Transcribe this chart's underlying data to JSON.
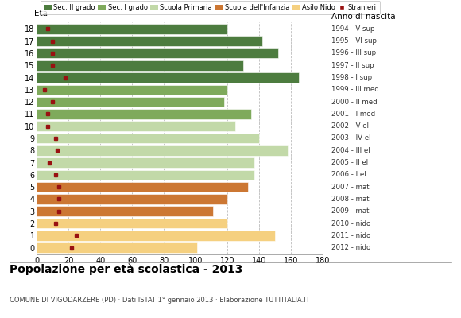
{
  "title": "Popolazione per età scolastica - 2013",
  "subtitle": "COMUNE DI VIGODARZERE (PD) · Dati ISTAT 1° gennaio 2013 · Elaborazione TUTTITALIA.IT",
  "label_eta": "Età",
  "label_anno": "Anno di nascita",
  "ages": [
    18,
    17,
    16,
    15,
    14,
    13,
    12,
    11,
    10,
    9,
    8,
    7,
    6,
    5,
    4,
    3,
    2,
    1,
    0
  ],
  "years": [
    "1994 - V sup",
    "1995 - VI sup",
    "1996 - III sup",
    "1997 - II sup",
    "1998 - I sup",
    "1999 - III med",
    "2000 - II med",
    "2001 - I med",
    "2002 - V el",
    "2003 - IV el",
    "2004 - III el",
    "2005 - II el",
    "2006 - I el",
    "2007 - mat",
    "2008 - mat",
    "2009 - mat",
    "2010 - nido",
    "2011 - nido",
    "2012 - nido"
  ],
  "bar_values": [
    120,
    142,
    152,
    130,
    165,
    120,
    118,
    135,
    125,
    140,
    158,
    137,
    137,
    133,
    120,
    111,
    120,
    150,
    101
  ],
  "stranieri": [
    7,
    10,
    10,
    10,
    18,
    5,
    10,
    7,
    7,
    12,
    13,
    8,
    12,
    14,
    14,
    14,
    12,
    25,
    22
  ],
  "colors": {
    "sec2": "#4d7c3f",
    "sec1": "#7faa5c",
    "primaria": "#c2d9a8",
    "infanzia": "#cc7733",
    "nido": "#f5d080",
    "stranieri": "#991111"
  },
  "xlim": [
    0,
    180
  ],
  "xticks": [
    0,
    20,
    40,
    60,
    80,
    100,
    120,
    140,
    160,
    180
  ],
  "grid_color": "#bbbbbb"
}
